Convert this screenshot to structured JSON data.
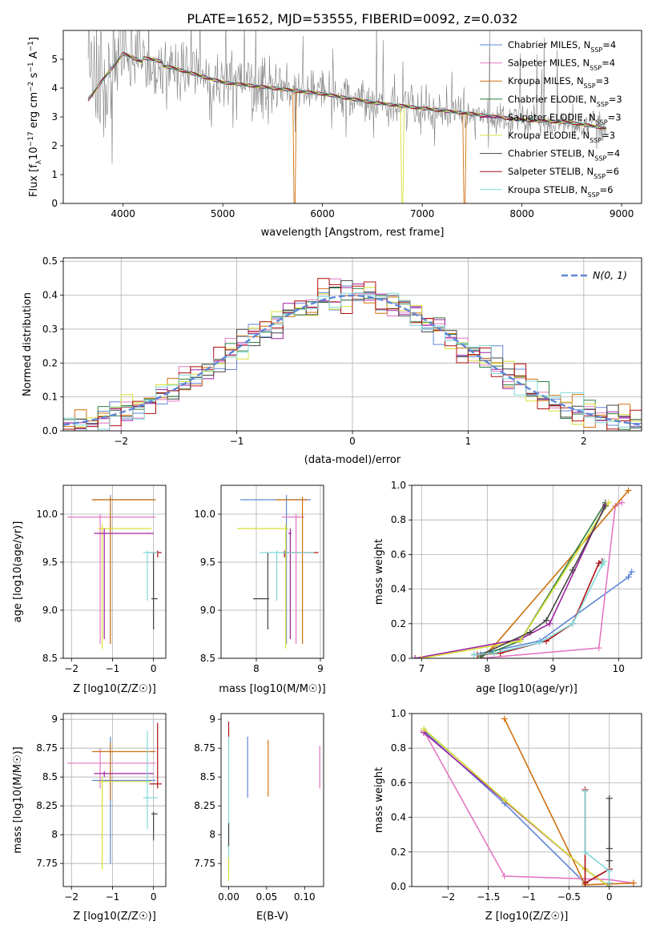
{
  "figure_title": "PLATE=1652, MJD=53555, FIBERID=0092, z=0.032",
  "models": [
    {
      "name": "Chabrier MILES",
      "nssp": "4",
      "color": "#5f86d6"
    },
    {
      "name": "Salpeter MILES",
      "nssp": "4",
      "color": "#e377c2"
    },
    {
      "name": "Kroupa MILES",
      "nssp": "3",
      "color": "#d0700f"
    },
    {
      "name": "Chabrier ELODIE",
      "nssp": "3",
      "color": "#2f7f3f"
    },
    {
      "name": "Salpeter ELODIE",
      "nssp": "3",
      "color": "#a020a0"
    },
    {
      "name": "Kroupa ELODIE",
      "nssp": "3",
      "color": "#d8e035"
    },
    {
      "name": "Chabrier STELIB",
      "nssp": "4",
      "color": "#444444"
    },
    {
      "name": "Salpeter STELIB",
      "nssp": "6",
      "color": "#b01010"
    },
    {
      "name": "Kroupa STELIB",
      "nssp": "6",
      "color": "#7fd8d8"
    }
  ],
  "chart_data": [
    {
      "id": "spectrum",
      "type": "line",
      "xlabel": "wavelength [Angstrom, rest frame]",
      "ylabel": "Flux [f_λ10^-17 erg cm^-2 s^-1 A^-1]",
      "xlim": [
        3400,
        9200
      ],
      "ylim": [
        0,
        6
      ],
      "xticks": [
        4000,
        5000,
        6000,
        7000,
        8000,
        9000
      ],
      "yticks": [
        0,
        1,
        2,
        3,
        4,
        5
      ],
      "data_color": "#808080",
      "data_trend": {
        "x": [
          3650,
          3800,
          4000,
          4200,
          4500,
          5000,
          5500,
          6000,
          6500,
          7000,
          7500,
          8000,
          8500,
          8850
        ],
        "y": [
          3.6,
          4.3,
          5.2,
          4.9,
          4.7,
          4.2,
          4.0,
          3.8,
          3.5,
          3.3,
          3.1,
          2.9,
          2.8,
          2.6
        ]
      },
      "model_dips": [
        {
          "model": "Kroupa MILES",
          "x": 5720
        },
        {
          "model": "Kroupa MILES",
          "x": 7420
        },
        {
          "model": "Kroupa ELODIE",
          "x": 6800
        }
      ],
      "legend_loc": "upper right",
      "grid": false
    },
    {
      "id": "residuals",
      "type": "line",
      "xlabel": "(data-model)/error",
      "ylabel": "Normed distribution",
      "xlim": [
        -2.5,
        2.5
      ],
      "ylim": [
        0,
        0.51
      ],
      "xticks": [
        -2,
        -1,
        0,
        1,
        2
      ],
      "yticks": [
        0.0,
        0.1,
        0.2,
        0.3,
        0.4,
        0.5
      ],
      "reference": {
        "name": "N(0,1)",
        "mu": 0,
        "sigma": 1,
        "style": "dashed",
        "color": "#5f86d6"
      },
      "bin_width": 0.1,
      "grid": true,
      "legend_loc": "upper right"
    },
    {
      "id": "age_vs_Z",
      "type": "scatter",
      "xlabel": "Z [log10(Z/Z☉)]",
      "ylabel": "age [log10(age/yr)]",
      "xlim": [
        -2.2,
        0.3
      ],
      "ylim": [
        8.5,
        10.3
      ],
      "xticks": [
        -2,
        -1,
        0
      ],
      "yticks": [
        8.5,
        9.0,
        9.5,
        10.0
      ],
      "grid": true
    },
    {
      "id": "age_vs_mass",
      "type": "scatter",
      "xlabel": "mass [log10(M/M☉)]",
      "ylabel": "",
      "xlim": [
        7.45,
        9.05
      ],
      "ylim": [
        8.5,
        10.3
      ],
      "xticks": [
        8,
        9
      ],
      "yticks": [
        8.5,
        9.0,
        9.5,
        10.0
      ],
      "grid": true
    },
    {
      "id": "weight_vs_age",
      "type": "line",
      "xlabel": "age [log10(age/yr)]",
      "ylabel": "mass weight",
      "xlim": [
        6.85,
        10.35
      ],
      "ylim": [
        0,
        1
      ],
      "xticks": [
        7,
        8,
        9,
        10
      ],
      "yticks": [
        0.0,
        0.2,
        0.4,
        0.6,
        0.8,
        1.0
      ],
      "grid": true,
      "series": [
        {
          "model": "Chabrier MILES",
          "x": [
            7.8,
            8.8,
            10.15,
            10.2
          ],
          "y": [
            0.02,
            0.1,
            0.47,
            0.5
          ]
        },
        {
          "model": "Salpeter MILES",
          "x": [
            7.9,
            9.7,
            9.95,
            10.05
          ],
          "y": [
            0.0,
            0.06,
            0.88,
            0.9
          ]
        },
        {
          "model": "Kroupa MILES",
          "x": [
            7.9,
            8.1,
            10.15
          ],
          "y": [
            0.0,
            0.07,
            0.97
          ]
        },
        {
          "model": "Chabrier ELODIE",
          "x": [
            7.9,
            8.5,
            9.8
          ],
          "y": [
            0.01,
            0.1,
            0.9
          ]
        },
        {
          "model": "Salpeter ELODIE",
          "x": [
            6.9,
            8.5,
            8.95,
            9.8
          ],
          "y": [
            0.0,
            0.11,
            0.2,
            0.89
          ]
        },
        {
          "model": "Kroupa ELODIE",
          "x": [
            7.0,
            8.5,
            9.85
          ],
          "y": [
            0.0,
            0.1,
            0.9
          ]
        },
        {
          "model": "Chabrier STELIB",
          "x": [
            7.9,
            8.65,
            8.9,
            9.3,
            9.8
          ],
          "y": [
            0.02,
            0.15,
            0.22,
            0.51,
            0.88
          ]
        },
        {
          "model": "Salpeter STELIB",
          "x": [
            7.85,
            8.2,
            8.9,
            9.3,
            9.7,
            9.75
          ],
          "y": [
            0.02,
            0.03,
            0.1,
            0.2,
            0.55,
            0.56
          ]
        },
        {
          "model": "Kroupa STELIB",
          "x": [
            7.8,
            8.1,
            8.8,
            9.3,
            9.75,
            9.78
          ],
          "y": [
            0.02,
            0.03,
            0.09,
            0.2,
            0.54,
            0.56
          ]
        }
      ]
    },
    {
      "id": "mass_vs_Z",
      "type": "scatter",
      "xlabel": "Z [log10(Z/Z☉)]",
      "ylabel": "mass [log10(M/M☉)]",
      "xlim": [
        -2.2,
        0.3
      ],
      "ylim": [
        7.55,
        9.05
      ],
      "xticks": [
        -2,
        -1,
        0
      ],
      "yticks": [
        7.75,
        8.0,
        8.25,
        8.5,
        8.75,
        9.0
      ],
      "grid": true
    },
    {
      "id": "mass_vs_ebv",
      "type": "scatter",
      "xlabel": "E(B-V)",
      "ylabel": "",
      "xlim": [
        -0.01,
        0.125
      ],
      "ylim": [
        7.55,
        9.05
      ],
      "xticks": [
        0.0,
        0.05,
        0.1
      ],
      "yticks": [
        7.75,
        8.0,
        8.25,
        8.5,
        8.75,
        9.0
      ],
      "grid": false,
      "bars": [
        {
          "model": "Chabrier MILES",
          "x": 0.025,
          "ylo": 8.32,
          "yhi": 8.85
        },
        {
          "model": "Kroupa MILES",
          "x": 0.052,
          "ylo": 8.33,
          "yhi": 8.82
        },
        {
          "model": "Salpeter MILES",
          "x": 0.12,
          "ylo": 8.4,
          "yhi": 8.77
        },
        {
          "model": "Kroupa STELIB",
          "x": 0.0,
          "ylo": 7.65,
          "yhi": 8.9
        },
        {
          "model": "Salpeter STELIB",
          "x": 0.0,
          "ylo": 8.85,
          "yhi": 8.98
        },
        {
          "model": "Chabrier STELIB",
          "x": 0.0,
          "ylo": 7.9,
          "yhi": 8.1
        },
        {
          "model": "Kroupa ELODIE",
          "x": 0.0,
          "ylo": 7.6,
          "yhi": 7.8
        }
      ]
    },
    {
      "id": "weight_vs_Z",
      "type": "line",
      "xlabel": "Z [log10(Z/Z☉)]",
      "ylabel": "mass weight",
      "xlim": [
        -2.45,
        0.4
      ],
      "ylim": [
        0,
        1
      ],
      "xticks": [
        -2.0,
        -1.5,
        -1.0,
        -0.5,
        0.0
      ],
      "yticks": [
        0.0,
        0.2,
        0.4,
        0.6,
        0.8,
        1.0
      ],
      "grid": true,
      "series": [
        {
          "model": "Chabrier MILES",
          "x": [
            -2.3,
            -1.3,
            -0.3,
            0.0
          ],
          "y": [
            0.9,
            0.48,
            0.02,
            0.1
          ]
        },
        {
          "model": "Salpeter MILES",
          "x": [
            -2.3,
            -1.3,
            0.0,
            0.3
          ],
          "y": [
            0.9,
            0.06,
            0.04,
            0.02
          ]
        },
        {
          "model": "Kroupa MILES",
          "x": [
            -1.3,
            -0.3,
            0.3
          ],
          "y": [
            0.97,
            0.01,
            0.02
          ]
        },
        {
          "model": "Chabrier ELODIE",
          "x": [
            -2.3,
            -1.3,
            -0.3,
            0.0
          ],
          "y": [
            0.91,
            0.5,
            0.1,
            0.0
          ]
        },
        {
          "model": "Salpeter ELODIE",
          "x": [
            -2.3,
            -0.3,
            0.0
          ],
          "y": [
            0.89,
            0.1,
            0.0
          ]
        },
        {
          "model": "Kroupa ELODIE",
          "x": [
            -2.3,
            -1.3,
            -0.3,
            0.0
          ],
          "y": [
            0.91,
            0.5,
            0.1,
            0.0
          ]
        },
        {
          "model": "Chabrier STELIB",
          "x": [
            0.0,
            0.0,
            0.0,
            0.0
          ],
          "y": [
            0.51,
            0.22,
            0.15,
            0.02
          ]
        },
        {
          "model": "Salpeter STELIB",
          "x": [
            -0.3,
            -0.3,
            0.0,
            0.0
          ],
          "y": [
            0.56,
            0.02,
            0.1,
            0.0
          ]
        },
        {
          "model": "Kroupa STELIB",
          "x": [
            -0.3,
            -0.3,
            0.0,
            0.0
          ],
          "y": [
            0.55,
            0.2,
            0.09,
            0.02
          ]
        }
      ]
    }
  ],
  "age_metal_errorbars": [
    {
      "model": "Chabrier MILES",
      "Z": -1.05,
      "Zlo": -1.5,
      "Zhi": 0.05,
      "age": 10.15,
      "alo": 8.65,
      "ahi": 10.2,
      "mass": 8.47,
      "mlo": 7.75,
      "mhi": 8.85
    },
    {
      "model": "Salpeter MILES",
      "Z": -1.3,
      "Zlo": -2.1,
      "Zhi": 0.05,
      "age": 9.97,
      "alo": 8.65,
      "ahi": 10.0,
      "mass": 8.62,
      "mlo": 8.4,
      "mhi": 8.75
    },
    {
      "model": "Kroupa MILES",
      "Z": -1.05,
      "Zlo": -1.5,
      "Zhi": 0.05,
      "age": 10.15,
      "alo": 8.65,
      "ahi": 10.18,
      "mass": 8.72,
      "mlo": 8.3,
      "mhi": 8.8
    },
    {
      "model": "Kroupa ELODIE",
      "Z": -1.25,
      "Zlo": -1.35,
      "Zhi": -0.05,
      "age": 9.85,
      "alo": 8.6,
      "ahi": 9.9,
      "mass": 8.46,
      "mlo": 7.7,
      "mhi": 8.5
    },
    {
      "model": "Salpeter ELODIE",
      "Z": -1.2,
      "Zlo": -1.45,
      "Zhi": 0.0,
      "age": 9.8,
      "alo": 8.7,
      "ahi": 9.85,
      "mass": 8.53,
      "mlo": 8.5,
      "mhi": 8.55
    },
    {
      "model": "Chabrier STELIB",
      "Z": 0.0,
      "Zlo": -0.05,
      "Zhi": 0.1,
      "age": 9.12,
      "alo": 8.8,
      "ahi": 9.6,
      "mass": 8.18,
      "mlo": 7.95,
      "mhi": 8.2
    },
    {
      "model": "Salpeter STELIB",
      "Z": 0.1,
      "Zlo": -0.1,
      "Zhi": 0.2,
      "age": 9.6,
      "alo": 9.55,
      "ahi": 9.62,
      "mass": 8.44,
      "mlo": 8.4,
      "mhi": 8.97
    },
    {
      "model": "Kroupa STELIB",
      "Z": -0.15,
      "Zlo": -0.25,
      "Zhi": 0.1,
      "age": 9.6,
      "alo": 9.1,
      "ahi": 9.62,
      "mass": 8.32,
      "mlo": 8.05,
      "mhi": 8.9
    }
  ]
}
